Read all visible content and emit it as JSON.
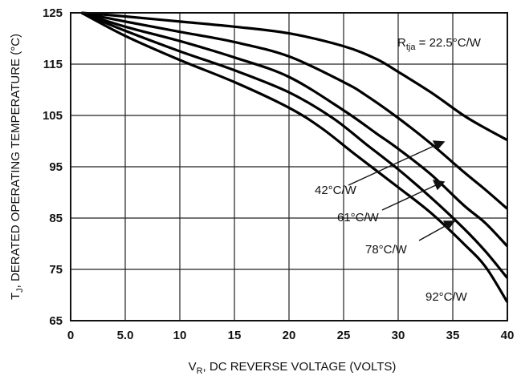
{
  "chart_data": {
    "type": "line",
    "xlabel": {
      "main": "V",
      "sub": "R",
      "rest": ", DC REVERSE VOLTAGE (VOLTS)"
    },
    "ylabel": {
      "main": "T",
      "sub": "J",
      "rest": ", DERATED OPERATING TEMPERATURE (°C)"
    },
    "xlim": [
      0,
      40
    ],
    "ylim": [
      65,
      125
    ],
    "x_ticks": [
      0,
      5,
      10,
      15,
      20,
      25,
      30,
      35,
      40
    ],
    "x_tick_labels": [
      "0",
      "5.0",
      "10",
      "15",
      "20",
      "25",
      "30",
      "35",
      "40"
    ],
    "y_ticks": [
      65,
      75,
      85,
      95,
      105,
      115,
      125
    ],
    "y_tick_labels": [
      "65",
      "75",
      "85",
      "95",
      "105",
      "115",
      "125"
    ],
    "grid": true,
    "series": [
      {
        "name": "22.5°C/W",
        "x": [
          1,
          5,
          10,
          15,
          20,
          25,
          28,
          30,
          33,
          36,
          38,
          40
        ],
        "y": [
          125,
          124.3,
          123.3,
          122.3,
          121,
          118.5,
          116,
          113.5,
          109.5,
          105,
          102.5,
          100.2
        ]
      },
      {
        "name": "42°C/W",
        "x": [
          1,
          5,
          10,
          15,
          20,
          25,
          27,
          30,
          33,
          36,
          38,
          40
        ],
        "y": [
          125,
          123.3,
          121.3,
          119.3,
          116.5,
          111.5,
          109,
          104.5,
          99.5,
          94,
          90.5,
          86.8
        ]
      },
      {
        "name": "61°C/W",
        "x": [
          1,
          5,
          10,
          15,
          20,
          25,
          28,
          30,
          33,
          36,
          38,
          40
        ],
        "y": [
          125,
          122.3,
          119.5,
          116.3,
          112.5,
          106,
          101.5,
          98.5,
          93.5,
          87.5,
          84,
          79.5
        ]
      },
      {
        "name": "78°C/W",
        "x": [
          1,
          5,
          10,
          15,
          20,
          24,
          27,
          30,
          33,
          36,
          38,
          40
        ],
        "y": [
          125,
          121.5,
          117.5,
          113.8,
          109.5,
          104.5,
          99.5,
          94.5,
          89,
          83,
          78.5,
          73.3
        ]
      },
      {
        "name": "92°C/W",
        "x": [
          1,
          5,
          10,
          15,
          20,
          23,
          26,
          30,
          33,
          36,
          38,
          40
        ],
        "y": [
          125,
          120.5,
          115.8,
          111.5,
          106.5,
          102.5,
          97.5,
          91,
          86,
          80,
          75.5,
          68.6
        ]
      }
    ],
    "annotations": [
      {
        "text": "R",
        "sub": "tja",
        "rest": " = 22.5°C/W",
        "series": "22.5°C/W"
      },
      {
        "text": "42°C/W",
        "series": "42°C/W"
      },
      {
        "text": "61°C/W",
        "series": "61°C/W"
      },
      {
        "text": "78°C/W",
        "series": "78°C/W"
      },
      {
        "text": "92°C/W",
        "series": "92°C/W"
      }
    ]
  }
}
